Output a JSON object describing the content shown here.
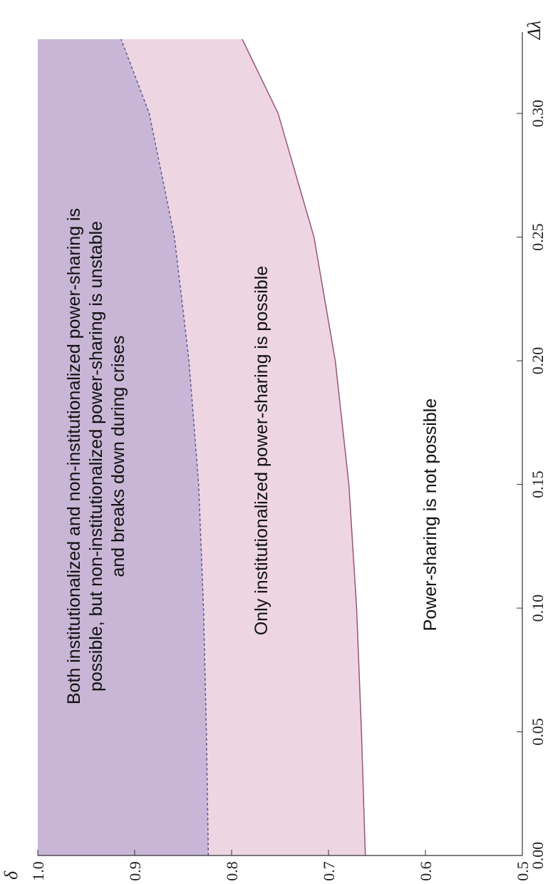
{
  "chart_data": {
    "type": "region",
    "x_label": "Δλ",
    "y_label": "δ",
    "x": [
      0,
      0.05,
      0.1,
      0.15,
      0.2,
      0.25,
      0.3,
      0.33
    ],
    "series": [
      {
        "color": "#5a5aa8",
        "line": "dashed",
        "fill": "#c9b6d6",
        "values": [
          0.824,
          0.826,
          0.829,
          0.834,
          0.844,
          0.859,
          0.885,
          0.914
        ]
      },
      {
        "color": "#a0507a",
        "line": "solid",
        "fill": "#edd6e2",
        "values": [
          0.662,
          0.666,
          0.671,
          0.679,
          0.693,
          0.715,
          0.752,
          0.789
        ]
      }
    ],
    "xlim": [
      0,
      0.33
    ],
    "ylim": [
      0.5,
      1.0
    ],
    "xticks": [
      {
        "value": 0,
        "label": "0.00"
      },
      {
        "value": 0.05,
        "label": "0.05"
      },
      {
        "value": 0.1,
        "label": "0.10"
      },
      0.15,
      {
        "value": 0.2,
        "label": "0.20"
      },
      0.25,
      {
        "value": 0.3,
        "label": "0.30"
      }
    ],
    "yticks": [
      0.5,
      0.6,
      0.7,
      0.8,
      0.9,
      {
        "value": 1,
        "label": "1.0"
      }
    ],
    "annotations": [
      {
        "lines": [
          "Both institutionalized and non-institutionalized power-sharing is",
          "possible, but non-institutionalized power-sharing is unstable",
          "and breaks down during crises"
        ]
      },
      {
        "lines": [
          "Only institutionalized power-sharing is possible"
        ]
      },
      {
        "lines": [
          "Power-sharing is not possible"
        ]
      }
    ]
  }
}
